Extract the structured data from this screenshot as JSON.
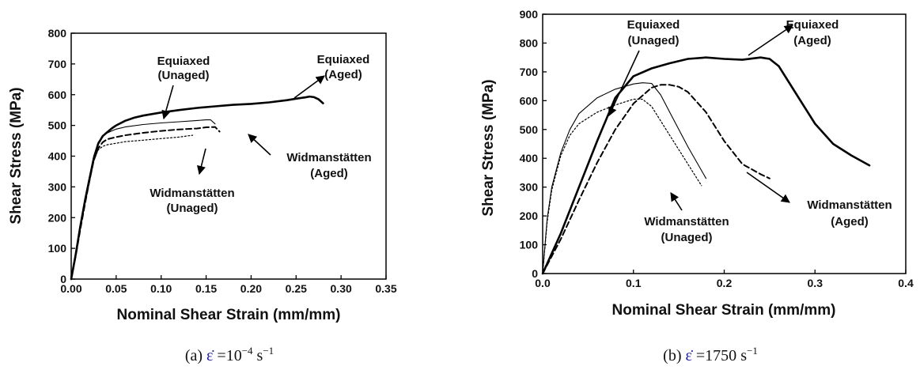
{
  "chart_data": [
    {
      "type": "line",
      "xlabel": "Nominal Shear Strain (mm/mm)",
      "ylabel": "Shear Stress (MPa)",
      "xlim": [
        0,
        0.35
      ],
      "ylim": [
        0,
        800
      ],
      "xticks": [
        "0.00",
        "0.05",
        "0.10",
        "0.15",
        "0.20",
        "0.25",
        "0.30",
        "0.35"
      ],
      "yticks": [
        "0",
        "100",
        "200",
        "300",
        "400",
        "500",
        "600",
        "700",
        "800"
      ],
      "grid": false,
      "caption": {
        "prefix": "(a) ",
        "symbol": "ε̇",
        "text": " =10",
        "sup": "−4",
        "unit": " s",
        "unit_sup": "−1"
      },
      "series": [
        {
          "key": "eq_aged",
          "style": "thick",
          "x": [
            0,
            0.005,
            0.01,
            0.015,
            0.02,
            0.025,
            0.03,
            0.035,
            0.04,
            0.045,
            0.05,
            0.06,
            0.07,
            0.08,
            0.1,
            0.12,
            0.14,
            0.16,
            0.18,
            0.2,
            0.22,
            0.24,
            0.25,
            0.26,
            0.265,
            0.27,
            0.275,
            0.28
          ],
          "y": [
            0,
            80,
            170,
            250,
            320,
            390,
            440,
            465,
            478,
            490,
            500,
            515,
            525,
            532,
            542,
            550,
            557,
            562,
            567,
            570,
            575,
            582,
            587,
            591,
            594,
            592,
            585,
            572
          ]
        },
        {
          "key": "eq_unaged",
          "style": "thin",
          "x": [
            0,
            0.005,
            0.01,
            0.015,
            0.02,
            0.025,
            0.03,
            0.035,
            0.04,
            0.045,
            0.05,
            0.06,
            0.08,
            0.1,
            0.12,
            0.14,
            0.15,
            0.155,
            0.16
          ],
          "y": [
            0,
            85,
            175,
            260,
            330,
            400,
            445,
            465,
            475,
            482,
            488,
            495,
            503,
            508,
            512,
            516,
            518,
            518,
            505
          ]
        },
        {
          "key": "wid_aged",
          "style": "dashed",
          "x": [
            0,
            0.005,
            0.01,
            0.015,
            0.02,
            0.025,
            0.03,
            0.035,
            0.04,
            0.05,
            0.06,
            0.08,
            0.1,
            0.12,
            0.14,
            0.15,
            0.16,
            0.165
          ],
          "y": [
            0,
            75,
            160,
            240,
            315,
            385,
            425,
            445,
            455,
            462,
            468,
            476,
            482,
            487,
            490,
            494,
            495,
            480
          ]
        },
        {
          "key": "wid_unaged",
          "style": "dotted",
          "x": [
            0,
            0.005,
            0.01,
            0.015,
            0.02,
            0.025,
            0.03,
            0.035,
            0.04,
            0.05,
            0.06,
            0.08,
            0.1,
            0.12,
            0.13,
            0.135
          ],
          "y": [
            0,
            80,
            165,
            245,
            320,
            385,
            420,
            432,
            437,
            442,
            447,
            452,
            457,
            462,
            466,
            468
          ]
        }
      ],
      "annotations": [
        {
          "lines": [
            "Equiaxed",
            "(Unaged)"
          ]
        },
        {
          "lines": [
            "Equiaxed",
            "(Aged)"
          ]
        },
        {
          "lines": [
            "Widmanstätten",
            "(Aged)"
          ]
        },
        {
          "lines": [
            "Widmanstätten",
            "(Unaged)"
          ]
        }
      ]
    },
    {
      "type": "line",
      "xlabel": "Nominal Shear Strain (mm/mm)",
      "ylabel": "Shear Stress (MPa)",
      "xlim": [
        0,
        0.4
      ],
      "ylim": [
        0,
        900
      ],
      "xticks": [
        "0.0",
        "0.1",
        "0.2",
        "0.3",
        "0.4"
      ],
      "yticks": [
        "0",
        "100",
        "200",
        "300",
        "400",
        "500",
        "600",
        "700",
        "800",
        "900"
      ],
      "grid": false,
      "caption": {
        "prefix": "(b) ",
        "symbol": "ε̇",
        "text": " =1750",
        "sup": "",
        "unit": " s",
        "unit_sup": "−1"
      },
      "series": [
        {
          "key": "eq_aged",
          "style": "thick",
          "x": [
            0,
            0.02,
            0.04,
            0.06,
            0.08,
            0.1,
            0.12,
            0.14,
            0.16,
            0.18,
            0.2,
            0.22,
            0.24,
            0.25,
            0.26,
            0.28,
            0.3,
            0.32,
            0.34,
            0.36
          ],
          "y": [
            0,
            140,
            300,
            460,
            610,
            685,
            712,
            730,
            745,
            750,
            745,
            742,
            750,
            745,
            720,
            620,
            520,
            450,
            410,
            375
          ]
        },
        {
          "key": "eq_unaged",
          "style": "thin",
          "x": [
            0,
            0.005,
            0.01,
            0.02,
            0.03,
            0.04,
            0.06,
            0.08,
            0.1,
            0.11,
            0.12,
            0.13,
            0.14,
            0.16,
            0.18
          ],
          "y": [
            0,
            190,
            300,
            420,
            500,
            555,
            610,
            640,
            658,
            662,
            660,
            620,
            560,
            440,
            330
          ]
        },
        {
          "key": "wid_aged",
          "style": "dashed",
          "x": [
            0,
            0.02,
            0.04,
            0.06,
            0.08,
            0.1,
            0.12,
            0.13,
            0.14,
            0.15,
            0.16,
            0.18,
            0.2,
            0.22,
            0.24,
            0.25
          ],
          "y": [
            0,
            120,
            255,
            385,
            500,
            590,
            645,
            655,
            655,
            648,
            630,
            560,
            460,
            380,
            345,
            330
          ]
        },
        {
          "key": "wid_unaged",
          "style": "dotted",
          "x": [
            0,
            0.005,
            0.01,
            0.02,
            0.03,
            0.04,
            0.06,
            0.08,
            0.1,
            0.11,
            0.12,
            0.14,
            0.16,
            0.175
          ],
          "y": [
            0,
            180,
            290,
            410,
            480,
            520,
            560,
            585,
            605,
            605,
            580,
            480,
            380,
            305
          ]
        }
      ],
      "annotations": [
        {
          "lines": [
            "Equiaxed",
            "(Unaged)"
          ]
        },
        {
          "lines": [
            "Equiaxed",
            "(Aged)"
          ]
        },
        {
          "lines": [
            "Widmanstätten",
            "(Aged)"
          ]
        },
        {
          "lines": [
            "Widmanstätten",
            "(Unaged)"
          ]
        }
      ]
    }
  ]
}
